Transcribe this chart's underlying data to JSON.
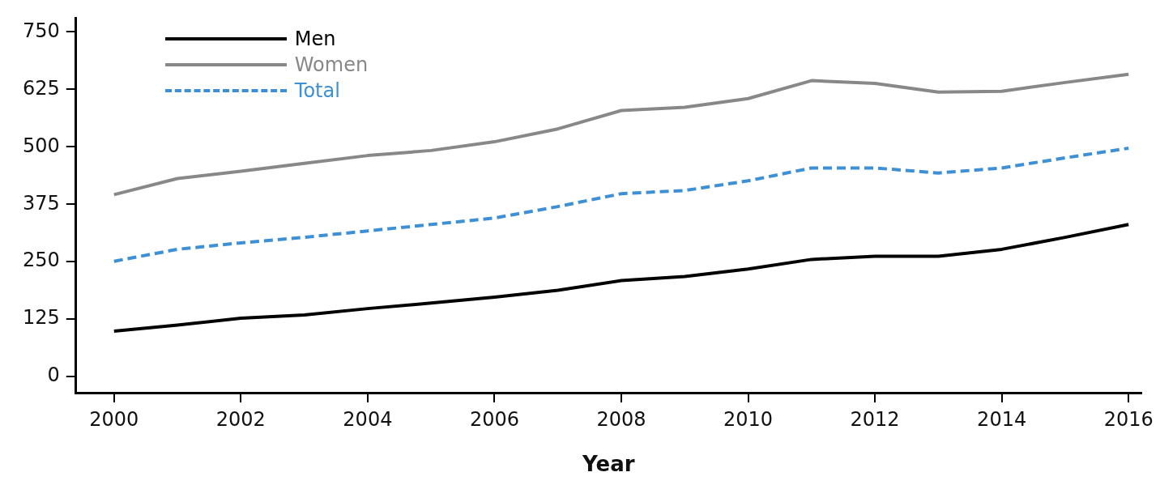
{
  "chart_data": {
    "type": "line",
    "xlabel": "Year",
    "x": [
      2000,
      2001,
      2002,
      2003,
      2004,
      2005,
      2006,
      2007,
      2008,
      2009,
      2010,
      2011,
      2012,
      2013,
      2014,
      2015,
      2016
    ],
    "series": [
      {
        "name": "Men",
        "color": "#000000",
        "line_style": "solid",
        "values": [
          99,
          112,
          127,
          134,
          148,
          160,
          173,
          188,
          209,
          218,
          234,
          255,
          262,
          262,
          277,
          303,
          331
        ]
      },
      {
        "name": "Women",
        "color": "#888888",
        "line_style": "solid",
        "values": [
          396,
          431,
          447,
          464,
          481,
          492,
          511,
          539,
          579,
          586,
          605,
          644,
          638,
          619,
          621,
          640,
          658
        ]
      },
      {
        "name": "Total",
        "color": "#3d8fd6",
        "line_style": "dashed",
        "values": [
          251,
          277,
          291,
          303,
          317,
          331,
          345,
          370,
          398,
          405,
          426,
          454,
          454,
          443,
          454,
          476,
          497
        ]
      }
    ],
    "xlim": [
      1999.4,
      2016.2
    ],
    "xticks": [
      2000,
      2002,
      2004,
      2006,
      2008,
      2010,
      2012,
      2014,
      2016
    ],
    "ylim": [
      -35,
      780
    ],
    "yticks": [
      0,
      125,
      250,
      375,
      500,
      625,
      750
    ],
    "grid": false,
    "legend": "top left",
    "marker": "none"
  }
}
